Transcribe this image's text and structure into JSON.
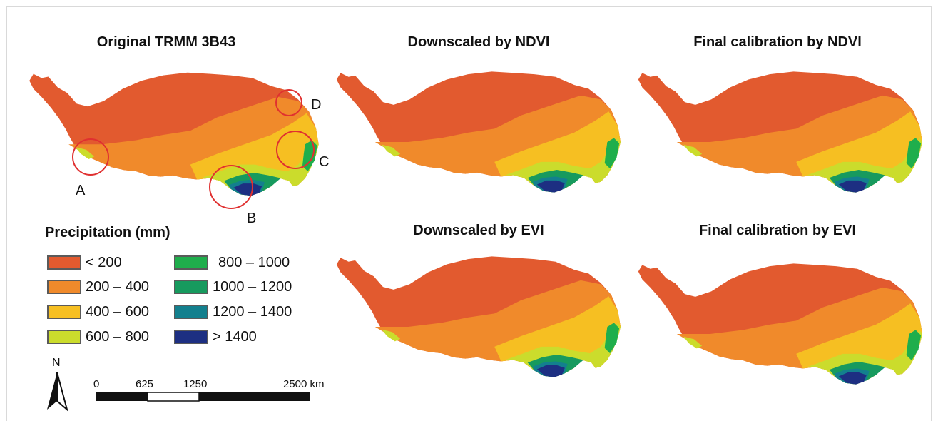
{
  "panels": [
    {
      "id": "original",
      "title": "Original TRMM 3B43"
    },
    {
      "id": "ndvi-downscaled",
      "title": "Downscaled by NDVI"
    },
    {
      "id": "ndvi-calibrated",
      "title": "Final calibration by NDVI"
    },
    {
      "id": "evi-downscaled",
      "title": "Downscaled by EVI"
    },
    {
      "id": "evi-calibrated",
      "title": "Final calibration by EVI"
    }
  ],
  "markers": [
    "A",
    "B",
    "C",
    "D"
  ],
  "legend": {
    "title": "Precipitation (mm)",
    "classes": [
      {
        "label": "< 200",
        "color": "#e25a2f"
      },
      {
        "label": "200 – 400",
        "color": "#f08a2b"
      },
      {
        "label": "400 – 600",
        "color": "#f6bf22"
      },
      {
        "label": "600 – 800",
        "color": "#cbdc2c"
      },
      {
        "label": "800 – 1000",
        "color": "#1fae4c"
      },
      {
        "label": "1000 – 1200",
        "color": "#179a5e"
      },
      {
        "label": "1200 – 1400",
        "color": "#13808e"
      },
      {
        "label": "> 1400",
        "color": "#1d2f82"
      }
    ]
  },
  "north_arrow": {
    "label": "N"
  },
  "scale_bar": {
    "ticks": [
      "0",
      "625",
      "1250",
      "2500 km"
    ]
  },
  "marker_color": "#e03030"
}
